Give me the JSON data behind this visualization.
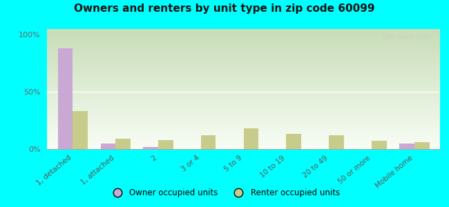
{
  "title": "Owners and renters by unit type in zip code 60099",
  "categories": [
    "1, detached",
    "1, attached",
    "2",
    "3 or 4",
    "5 to 9",
    "10 to 19",
    "20 to 49",
    "50 or more",
    "Mobile home"
  ],
  "owner_values": [
    88,
    5,
    2,
    0,
    0,
    0,
    0,
    0,
    5
  ],
  "renter_values": [
    33,
    9,
    8,
    12,
    18,
    13,
    12,
    7,
    6
  ],
  "owner_color": "#c9a8d4",
  "renter_color": "#c8cc8a",
  "outer_bg": "#00ffff",
  "plot_bg_top": "#c8ddb8",
  "plot_bg_bottom": "#f8fdf5",
  "ylabel_ticks": [
    0,
    50,
    100
  ],
  "ylabel_labels": [
    "0%",
    "50%",
    "100%"
  ],
  "bar_width": 0.35,
  "legend_owner": "Owner occupied units",
  "legend_renter": "Renter occupied units",
  "watermark": "City-Data.com"
}
